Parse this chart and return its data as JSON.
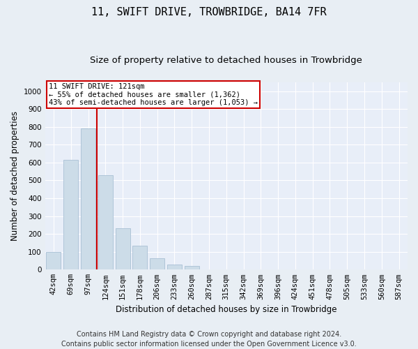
{
  "title": "11, SWIFT DRIVE, TROWBRIDGE, BA14 7FR",
  "subtitle": "Size of property relative to detached houses in Trowbridge",
  "xlabel": "Distribution of detached houses by size in Trowbridge",
  "ylabel": "Number of detached properties",
  "categories": [
    "42sqm",
    "69sqm",
    "97sqm",
    "124sqm",
    "151sqm",
    "178sqm",
    "206sqm",
    "233sqm",
    "260sqm",
    "287sqm",
    "315sqm",
    "342sqm",
    "369sqm",
    "396sqm",
    "424sqm",
    "451sqm",
    "478sqm",
    "505sqm",
    "533sqm",
    "560sqm",
    "587sqm"
  ],
  "values": [
    100,
    615,
    790,
    530,
    230,
    135,
    65,
    30,
    20,
    0,
    0,
    0,
    0,
    0,
    0,
    0,
    0,
    0,
    0,
    0,
    0
  ],
  "bar_color": "#ccdce8",
  "bar_edge_color": "#a8c0d4",
  "vline_color": "#cc0000",
  "vline_x_index": 2.5,
  "annotation_text": "11 SWIFT DRIVE: 121sqm\n← 55% of detached houses are smaller (1,362)\n43% of semi-detached houses are larger (1,053) →",
  "annotation_box_facecolor": "#ffffff",
  "annotation_box_edgecolor": "#cc0000",
  "ylim": [
    0,
    1050
  ],
  "yticks": [
    0,
    100,
    200,
    300,
    400,
    500,
    600,
    700,
    800,
    900,
    1000
  ],
  "footer": "Contains HM Land Registry data © Crown copyright and database right 2024.\nContains public sector information licensed under the Open Government Licence v3.0.",
  "bg_color": "#e8eef4",
  "plot_bg_color": "#e8eef8",
  "grid_color": "#ffffff",
  "title_fontsize": 11,
  "subtitle_fontsize": 9.5,
  "axis_label_fontsize": 8.5,
  "tick_fontsize": 7.5,
  "annotation_fontsize": 7.5,
  "footer_fontsize": 7.0
}
